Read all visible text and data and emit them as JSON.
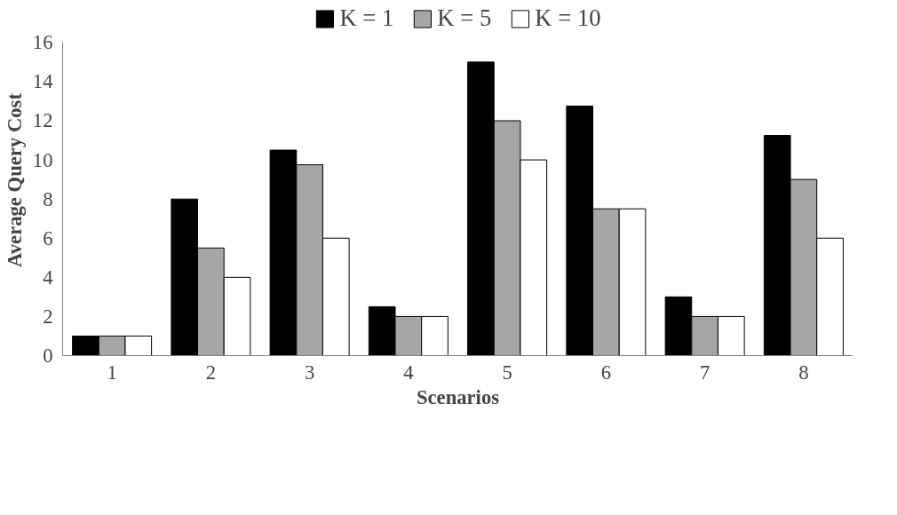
{
  "chart_data": {
    "type": "bar",
    "xlabel": "Scenarios",
    "ylabel": "Average Query Cost",
    "categories": [
      "1",
      "2",
      "3",
      "4",
      "5",
      "6",
      "7",
      "8"
    ],
    "series": [
      {
        "name": "K = 1",
        "color": "#000000",
        "values": [
          1,
          8,
          10.5,
          2.5,
          15,
          12.75,
          3,
          11.25
        ]
      },
      {
        "name": "K = 5",
        "color": "#a6a6a6",
        "values": [
          1,
          5.5,
          9.75,
          2,
          12,
          7.5,
          2,
          9
        ]
      },
      {
        "name": "K = 10",
        "color": "#ffffff",
        "values": [
          1,
          4,
          6,
          2,
          10,
          7.5,
          2,
          6
        ]
      }
    ],
    "ylim": [
      0,
      16
    ],
    "yticks": [
      0,
      2,
      4,
      6,
      8,
      10,
      12,
      14,
      16
    ],
    "grid": false,
    "legend": "top"
  }
}
